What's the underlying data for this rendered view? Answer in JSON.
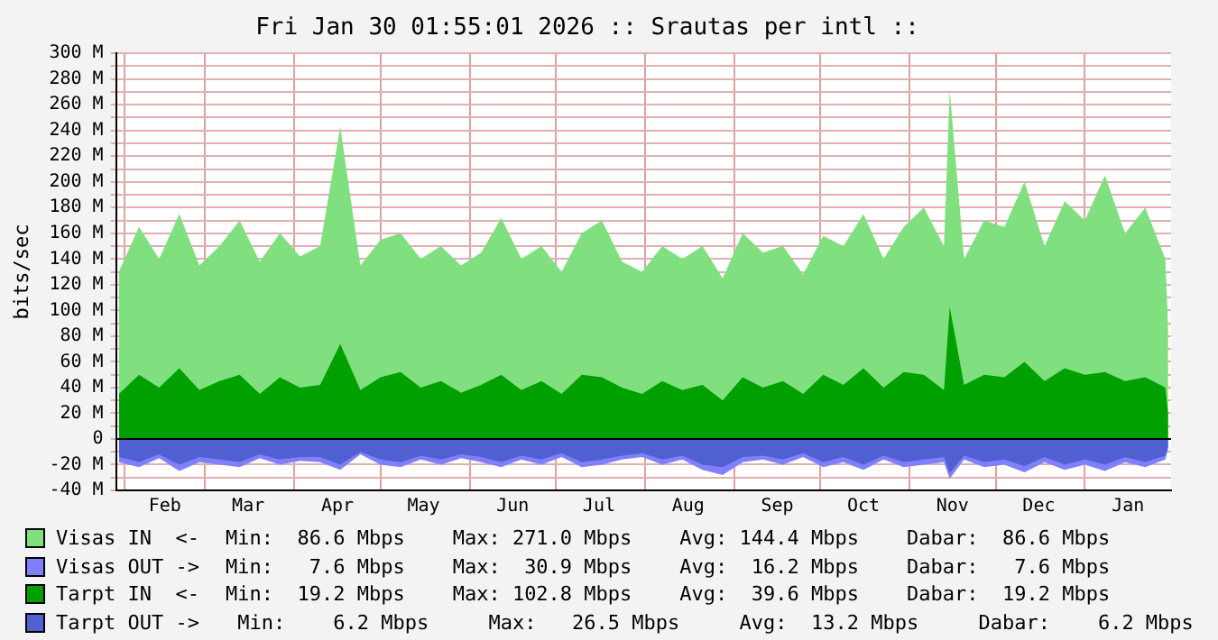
{
  "chart_data": {
    "type": "area",
    "title": "Fri Jan 30 01:55:01 2026 :: Srautas per intl ::",
    "ylabel": "bits/sec",
    "x": [
      "2025-01-30",
      "2025-02-06",
      "2025-02-13",
      "2025-02-20",
      "2025-02-27",
      "2025-03-06",
      "2025-03-13",
      "2025-03-20",
      "2025-03-27",
      "2025-04-03",
      "2025-04-10",
      "2025-04-17",
      "2025-04-24",
      "2025-05-01",
      "2025-05-08",
      "2025-05-15",
      "2025-05-22",
      "2025-05-29",
      "2025-06-05",
      "2025-06-12",
      "2025-06-19",
      "2025-06-26",
      "2025-07-03",
      "2025-07-10",
      "2025-07-17",
      "2025-07-24",
      "2025-07-31",
      "2025-08-07",
      "2025-08-14",
      "2025-08-21",
      "2025-08-28",
      "2025-09-04",
      "2025-09-11",
      "2025-09-18",
      "2025-09-25",
      "2025-10-02",
      "2025-10-09",
      "2025-10-16",
      "2025-10-23",
      "2025-10-30",
      "2025-11-06",
      "2025-11-13",
      "2025-11-15",
      "2025-11-20",
      "2025-11-27",
      "2025-12-04",
      "2025-12-11",
      "2025-12-18",
      "2025-12-25",
      "2026-01-01",
      "2026-01-08",
      "2026-01-15",
      "2026-01-22",
      "2026-01-29",
      "2026-01-30"
    ],
    "series": [
      {
        "name": "Visas IN  <-",
        "color": "#80e080",
        "values": [
          130,
          165,
          140,
          175,
          135,
          150,
          170,
          138,
          160,
          142,
          150,
          243,
          135,
          155,
          160,
          140,
          150,
          135,
          145,
          172,
          140,
          150,
          130,
          160,
          170,
          138,
          130,
          150,
          140,
          150,
          125,
          160,
          145,
          150,
          128,
          158,
          150,
          175,
          140,
          165,
          180,
          150,
          271,
          140,
          170,
          165,
          200,
          150,
          185,
          170,
          205,
          160,
          180,
          140,
          86.6
        ]
      },
      {
        "name": "Visas OUT ->",
        "color": "#8080ff",
        "values": [
          -18,
          -22,
          -15,
          -25,
          -18,
          -20,
          -22,
          -15,
          -20,
          -17,
          -18,
          -24,
          -12,
          -20,
          -22,
          -16,
          -20,
          -15,
          -18,
          -22,
          -16,
          -20,
          -14,
          -22,
          -20,
          -16,
          -14,
          -20,
          -16,
          -24,
          -28,
          -18,
          -16,
          -20,
          -14,
          -22,
          -18,
          -24,
          -16,
          -22,
          -20,
          -18,
          -30.9,
          -16,
          -22,
          -20,
          -26,
          -18,
          -24,
          -20,
          -25,
          -18,
          -22,
          -16,
          -7.6
        ]
      },
      {
        "name": "Tarpt IN  <-",
        "color": "#00a000",
        "values": [
          35,
          50,
          40,
          55,
          38,
          45,
          50,
          35,
          48,
          40,
          42,
          74,
          38,
          48,
          52,
          40,
          45,
          36,
          42,
          50,
          38,
          45,
          35,
          50,
          48,
          40,
          35,
          45,
          38,
          42,
          30,
          48,
          40,
          45,
          35,
          50,
          42,
          55,
          40,
          52,
          50,
          38,
          102.8,
          42,
          50,
          48,
          60,
          45,
          55,
          50,
          52,
          45,
          48,
          40,
          19.2
        ]
      },
      {
        "name": "Tarpt OUT ->",
        "color": "#5060d0",
        "values": [
          -14,
          -18,
          -12,
          -20,
          -14,
          -16,
          -18,
          -12,
          -16,
          -14,
          -14,
          -20,
          -10,
          -16,
          -18,
          -13,
          -16,
          -12,
          -14,
          -18,
          -13,
          -16,
          -11,
          -18,
          -16,
          -13,
          -11,
          -16,
          -13,
          -20,
          -22,
          -14,
          -13,
          -16,
          -11,
          -18,
          -14,
          -20,
          -13,
          -18,
          -16,
          -14,
          -26.5,
          -13,
          -18,
          -16,
          -21,
          -14,
          -20,
          -16,
          -20,
          -14,
          -18,
          -13,
          -6.2
        ]
      }
    ],
    "xlim": [
      "2025-01-29",
      "2026-01-31"
    ],
    "xticks": [
      {
        "value": "2025-02-01",
        "label": null
      },
      {
        "value": "2025-02-15",
        "label": "Feb"
      },
      {
        "value": "2025-03-01",
        "label": null
      },
      {
        "value": "2025-03-16",
        "label": "Mar"
      },
      {
        "value": "2025-04-01",
        "label": null
      },
      {
        "value": "2025-04-16",
        "label": "Apr"
      },
      {
        "value": "2025-05-01",
        "label": null
      },
      {
        "value": "2025-05-16",
        "label": "May"
      },
      {
        "value": "2025-06-01",
        "label": null
      },
      {
        "value": "2025-06-16",
        "label": "Jun"
      },
      {
        "value": "2025-07-01",
        "label": null
      },
      {
        "value": "2025-07-16",
        "label": "Jul"
      },
      {
        "value": "2025-08-01",
        "label": null
      },
      {
        "value": "2025-08-16",
        "label": "Aug"
      },
      {
        "value": "2025-09-01",
        "label": null
      },
      {
        "value": "2025-09-16",
        "label": "Sep"
      },
      {
        "value": "2025-10-01",
        "label": null
      },
      {
        "value": "2025-10-16",
        "label": "Oct"
      },
      {
        "value": "2025-11-01",
        "label": null
      },
      {
        "value": "2025-11-16",
        "label": "Nov"
      },
      {
        "value": "2025-12-01",
        "label": null
      },
      {
        "value": "2025-12-16",
        "label": "Dec"
      },
      {
        "value": "2026-01-01",
        "label": null
      },
      {
        "value": "2026-01-16",
        "label": "Jan"
      }
    ],
    "ylim": [
      -40,
      300
    ],
    "yticks": [
      {
        "value": -40,
        "label": "-40 M"
      },
      {
        "value": -30,
        "label": null
      },
      {
        "value": -20,
        "label": "-20 M"
      },
      {
        "value": -10,
        "label": null
      },
      0,
      {
        "value": 10,
        "label": null
      },
      {
        "value": 20,
        "label": "20 M"
      },
      {
        "value": 30,
        "label": null
      },
      {
        "value": 40,
        "label": "40 M"
      },
      {
        "value": 50,
        "label": null
      },
      {
        "value": 60,
        "label": "60 M"
      },
      {
        "value": 70,
        "label": null
      },
      {
        "value": 80,
        "label": "80 M"
      },
      {
        "value": 90,
        "label": null
      },
      {
        "value": 100,
        "label": "100 M"
      },
      {
        "value": 110,
        "label": null
      },
      {
        "value": 120,
        "label": "120 M"
      },
      {
        "value": 130,
        "label": null
      },
      {
        "value": 140,
        "label": "140 M"
      },
      {
        "value": 150,
        "label": null
      },
      {
        "value": 160,
        "label": "160 M"
      },
      {
        "value": 170,
        "label": null
      },
      {
        "value": 180,
        "label": "180 M"
      },
      {
        "value": 190,
        "label": null
      },
      {
        "value": 200,
        "label": "200 M"
      },
      {
        "value": 210,
        "label": null
      },
      {
        "value": 220,
        "label": "220 M"
      },
      {
        "value": 230,
        "label": null
      },
      {
        "value": 240,
        "label": "240 M"
      },
      {
        "value": 250,
        "label": null
      },
      {
        "value": 260,
        "label": "260 M"
      },
      {
        "value": 270,
        "label": null
      },
      {
        "value": 280,
        "label": "280 M"
      },
      {
        "value": 290,
        "label": null
      },
      {
        "value": 300,
        "label": "300 M"
      }
    ],
    "grid": true,
    "legend": "bottom",
    "annotations": [
      "Min:  86.6 Mbps    Max: 271.0 Mbps    Avg: 144.4 Mbps    Dabar:  86.6 Mbps",
      "Min:   7.6 Mbps    Max:  30.9 Mbps    Avg:  16.2 Mbps    Dabar:   7.6 Mbps",
      "Min:  19.2 Mbps    Max: 102.8 Mbps    Avg:  39.6 Mbps    Dabar:  19.2 Mbps",
      " Min:    6.2 Mbps     Max:   26.5 Mbps     Avg:  13.2 Mbps     Dabar:    6.2 Mbps"
    ]
  }
}
